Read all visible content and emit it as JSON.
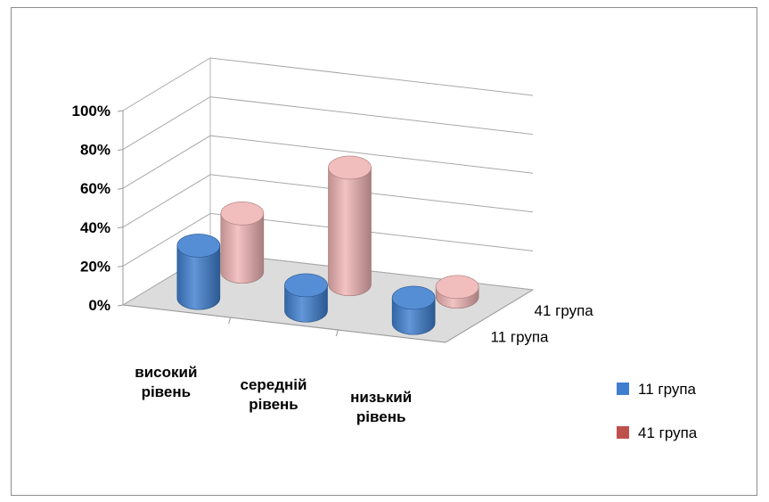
{
  "chart_data": {
    "type": "bar",
    "subtype": "3d-cylinder",
    "categories": [
      "високий рівень",
      "середній рівень",
      "низький рівень"
    ],
    "category_lines": [
      [
        "високий",
        "рівень"
      ],
      [
        "середній",
        "рівень"
      ],
      [
        "низький",
        "рівень"
      ]
    ],
    "series": [
      {
        "name": "11 група",
        "values": [
          27,
          13,
          13
        ],
        "color": "#3f7fd0"
      },
      {
        "name": "41 група",
        "values": [
          30,
          60,
          5
        ],
        "color": "#f0b4b4"
      }
    ],
    "depth_labels": [
      "11 група",
      "41 група"
    ],
    "y_ticks": [
      "0%",
      "20%",
      "40%",
      "60%",
      "80%",
      "100%"
    ],
    "ylim": [
      0,
      100
    ],
    "grid": true,
    "legend_position": "right",
    "legend": [
      {
        "label": "11 група",
        "color": "#3f7fd0"
      },
      {
        "label": "41 група",
        "color": "#c0504d"
      }
    ]
  }
}
